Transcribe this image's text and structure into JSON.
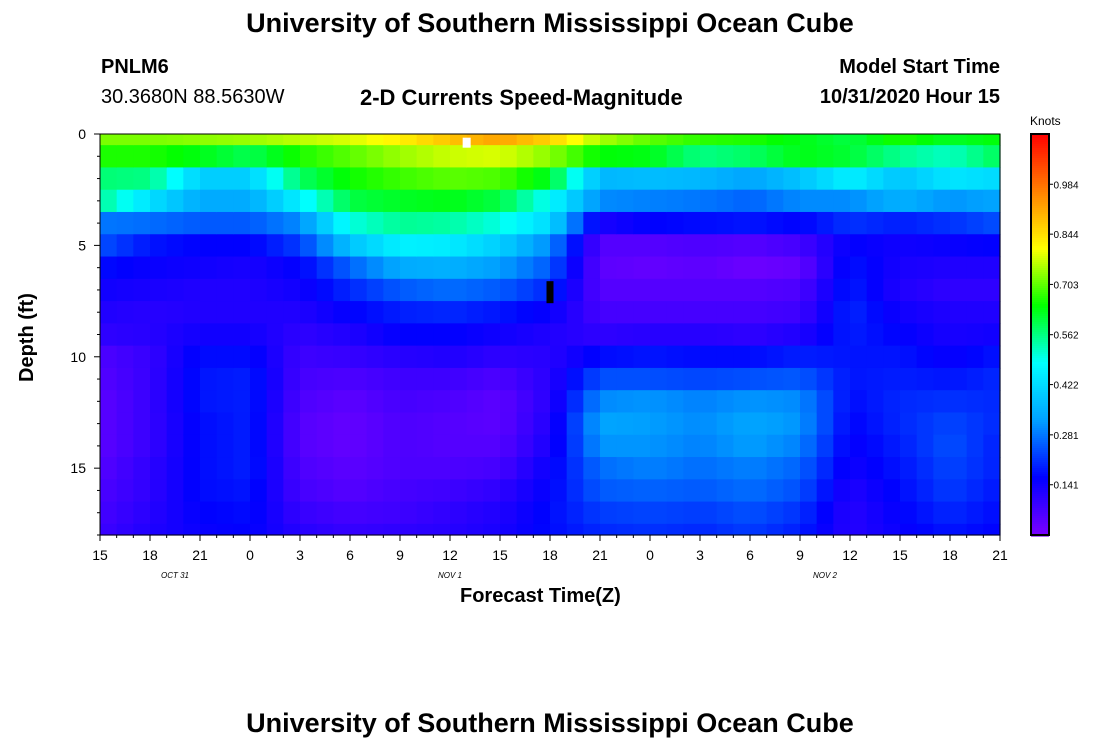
{
  "header": {
    "title": "University of Southern Mississippi Ocean Cube",
    "station_id": "PNLM6",
    "station_coords": "30.3680N 88.5630W",
    "chart_title": "2-D Currents Speed-Magnitude",
    "model_start_label": "Model Start Time",
    "model_start_value": "10/31/2020 Hour 15"
  },
  "footer": {
    "title": "University of Southern Mississippi Ocean Cube"
  },
  "chart_data": {
    "type": "heatmap",
    "title": "2-D Currents Speed-Magnitude",
    "xlabel": "Forecast Time(Z)",
    "ylabel": "Depth (ft)",
    "x_tick_labels": [
      "15",
      "18",
      "21",
      "0",
      "3",
      "6",
      "9",
      "12",
      "15",
      "18",
      "21",
      "0",
      "3",
      "6",
      "9",
      "12",
      "15",
      "18",
      "21"
    ],
    "x_date_labels": [
      {
        "text": "OCT 31",
        "tick_index": 1.5
      },
      {
        "text": "NOV 1",
        "tick_index": 7
      },
      {
        "text": "NOV 2",
        "tick_index": 14.5
      }
    ],
    "ylim": [
      0,
      18
    ],
    "y_ticks": [
      0,
      5,
      10,
      15
    ],
    "x_range_hours": [
      0,
      54
    ],
    "colorbar": {
      "unit": "Knots",
      "range": [
        0,
        1.125
      ],
      "ticks": [
        "0.984",
        "0.844",
        "0.703",
        "0.562",
        "0.422",
        "0.281",
        "0.141"
      ],
      "tick_values": [
        0.984,
        0.844,
        0.703,
        0.562,
        0.422,
        0.281,
        0.141
      ],
      "colors": [
        "#7a00ff",
        "#0000ff",
        "#00a0ff",
        "#00ffff",
        "#00ff00",
        "#ffff00",
        "#ff8000",
        "#ff0000"
      ]
    },
    "depth_bin_centers_ft": [
      0.25,
      1,
      2,
      3,
      4,
      5,
      6,
      7,
      8,
      9,
      10,
      11,
      12,
      13,
      14,
      15,
      16,
      17,
      17.75
    ],
    "time_knots_hours": [
      0,
      3,
      6,
      9,
      12,
      15,
      18,
      21,
      24,
      27,
      30,
      33,
      36,
      39,
      42,
      45,
      48,
      51,
      54
    ],
    "speed_knots": [
      [
        0.72,
        0.72,
        0.73,
        0.74,
        0.76,
        0.78,
        0.82,
        0.88,
        0.92,
        0.86,
        0.75,
        0.7,
        0.67,
        0.66,
        0.63,
        0.6,
        0.66,
        0.62,
        0.64
      ],
      [
        0.66,
        0.66,
        0.63,
        0.59,
        0.66,
        0.7,
        0.74,
        0.77,
        0.78,
        0.73,
        0.64,
        0.63,
        0.56,
        0.58,
        0.63,
        0.61,
        0.55,
        0.52,
        0.59
      ],
      [
        0.57,
        0.56,
        0.4,
        0.4,
        0.58,
        0.65,
        0.68,
        0.7,
        0.69,
        0.62,
        0.36,
        0.37,
        0.36,
        0.33,
        0.38,
        0.46,
        0.38,
        0.44,
        0.42
      ],
      [
        0.55,
        0.43,
        0.34,
        0.34,
        0.46,
        0.6,
        0.62,
        0.63,
        0.6,
        0.48,
        0.3,
        0.29,
        0.28,
        0.26,
        0.3,
        0.3,
        0.35,
        0.31,
        0.33
      ],
      [
        0.28,
        0.27,
        0.25,
        0.25,
        0.3,
        0.5,
        0.55,
        0.54,
        0.5,
        0.42,
        0.13,
        0.16,
        0.17,
        0.18,
        0.16,
        0.21,
        0.19,
        0.21,
        0.24
      ],
      [
        0.24,
        0.18,
        0.16,
        0.16,
        0.22,
        0.38,
        0.46,
        0.45,
        0.4,
        0.3,
        0.05,
        0.05,
        0.06,
        0.05,
        0.07,
        0.16,
        0.14,
        0.15,
        0.16
      ],
      [
        0.17,
        0.15,
        0.14,
        0.13,
        0.16,
        0.26,
        0.34,
        0.35,
        0.32,
        0.25,
        0.04,
        0.03,
        0.04,
        0.02,
        0.03,
        0.18,
        0.13,
        0.12,
        0.12
      ],
      [
        0.14,
        0.13,
        0.12,
        0.12,
        0.14,
        0.2,
        0.25,
        0.27,
        0.25,
        0.2,
        0.05,
        0.05,
        0.05,
        0.05,
        0.06,
        0.19,
        0.12,
        0.1,
        0.1
      ],
      [
        0.12,
        0.11,
        0.12,
        0.12,
        0.12,
        0.16,
        0.19,
        0.2,
        0.18,
        0.15,
        0.07,
        0.07,
        0.07,
        0.07,
        0.08,
        0.2,
        0.14,
        0.12,
        0.12
      ],
      [
        0.1,
        0.11,
        0.14,
        0.14,
        0.1,
        0.12,
        0.16,
        0.16,
        0.14,
        0.12,
        0.1,
        0.11,
        0.11,
        0.1,
        0.12,
        0.19,
        0.16,
        0.13,
        0.14
      ],
      [
        0.06,
        0.09,
        0.17,
        0.17,
        0.08,
        0.09,
        0.11,
        0.12,
        0.1,
        0.11,
        0.17,
        0.18,
        0.17,
        0.17,
        0.19,
        0.18,
        0.18,
        0.15,
        0.18
      ],
      [
        0.05,
        0.09,
        0.18,
        0.19,
        0.07,
        0.06,
        0.08,
        0.08,
        0.06,
        0.11,
        0.24,
        0.24,
        0.23,
        0.24,
        0.25,
        0.18,
        0.19,
        0.18,
        0.2
      ],
      [
        0.04,
        0.09,
        0.18,
        0.19,
        0.06,
        0.04,
        0.07,
        0.06,
        0.04,
        0.11,
        0.3,
        0.31,
        0.29,
        0.31,
        0.3,
        0.17,
        0.2,
        0.21,
        0.2
      ],
      [
        0.04,
        0.09,
        0.17,
        0.19,
        0.05,
        0.03,
        0.06,
        0.05,
        0.04,
        0.12,
        0.33,
        0.32,
        0.3,
        0.33,
        0.31,
        0.16,
        0.2,
        0.23,
        0.2
      ],
      [
        0.04,
        0.09,
        0.17,
        0.19,
        0.05,
        0.03,
        0.06,
        0.05,
        0.05,
        0.13,
        0.31,
        0.31,
        0.29,
        0.32,
        0.29,
        0.15,
        0.19,
        0.24,
        0.19
      ],
      [
        0.05,
        0.1,
        0.17,
        0.19,
        0.06,
        0.04,
        0.06,
        0.06,
        0.07,
        0.15,
        0.27,
        0.29,
        0.27,
        0.29,
        0.26,
        0.14,
        0.18,
        0.23,
        0.19
      ],
      [
        0.06,
        0.1,
        0.17,
        0.18,
        0.07,
        0.05,
        0.07,
        0.08,
        0.1,
        0.16,
        0.25,
        0.26,
        0.25,
        0.27,
        0.24,
        0.12,
        0.17,
        0.22,
        0.18
      ],
      [
        0.07,
        0.11,
        0.16,
        0.17,
        0.09,
        0.07,
        0.08,
        0.1,
        0.12,
        0.17,
        0.22,
        0.23,
        0.22,
        0.24,
        0.21,
        0.11,
        0.16,
        0.2,
        0.17
      ],
      [
        0.08,
        0.12,
        0.15,
        0.16,
        0.11,
        0.09,
        0.1,
        0.11,
        0.13,
        0.17,
        0.2,
        0.21,
        0.2,
        0.22,
        0.19,
        0.11,
        0.15,
        0.18,
        0.16
      ]
    ],
    "markers": [
      {
        "type": "white-square",
        "time_hours": 22,
        "depth_ft": 0.3
      },
      {
        "type": "black-bar",
        "time_hours": 27,
        "depth_ft": 7.1
      }
    ]
  }
}
